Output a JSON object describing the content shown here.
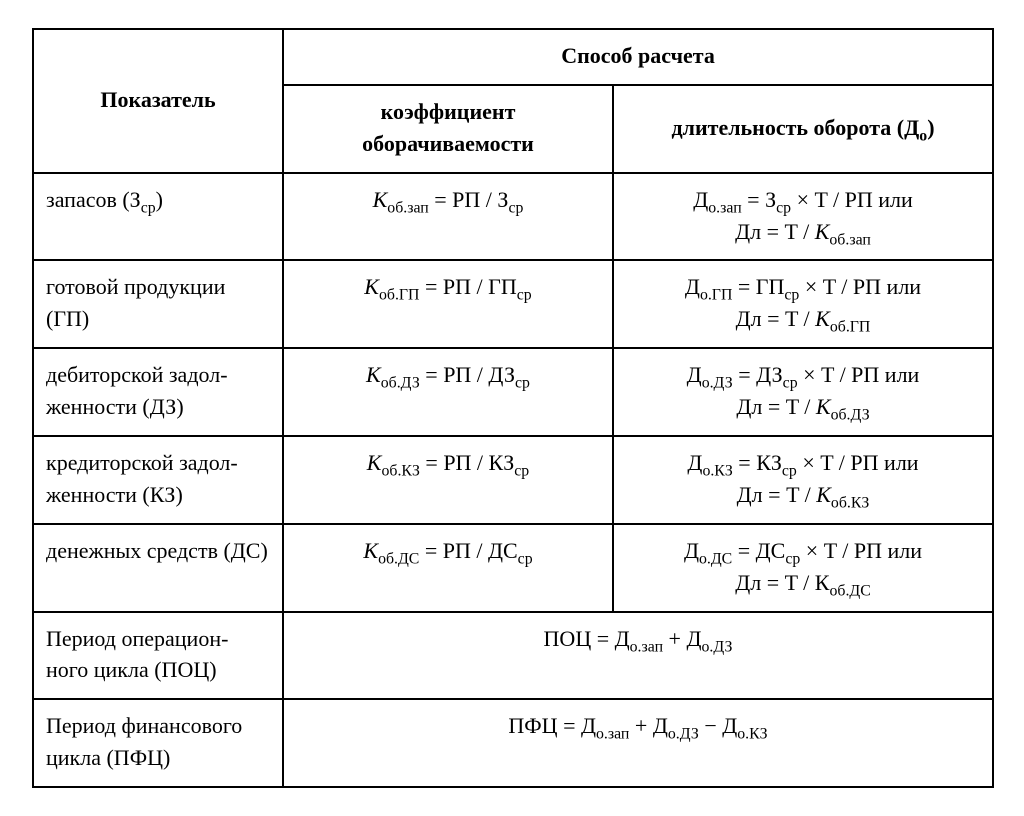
{
  "table": {
    "border_color": "#000000",
    "background_color": "#ffffff",
    "font_family": "Times New Roman",
    "body_fontsize_pt": 16,
    "header": {
      "indicator": "Показатель",
      "method": "Способ расчета",
      "sub_coeff": "коэффициент оборачиваемости",
      "sub_duration_html": "длительность оборота (Д<sub>о</sub>)"
    },
    "rows": [
      {
        "indicator_html": "запасов (З<sub>ср</sub>)",
        "coeff_html": "<span class=\"it\">K</span><sub>об.зап</sub> = РП / З<sub>ср</sub>",
        "duration_html": "Д<sub>о.зап</sub> = З<sub>ср</sub> × T / РП или<br>Дл = T / <span class=\"it\">K</span><sub>об.зап</sub>"
      },
      {
        "indicator_html": "готовой продукции (ГП)",
        "coeff_html": "<span class=\"it\">K</span><sub>об.ГП</sub> = РП / ГП<sub>ср</sub>",
        "duration_html": "Д<sub>о.ГП</sub> = ГП<sub>ср</sub> × T / РП или<br>Дл = T / <span class=\"it\">K</span><sub>об.ГП</sub>"
      },
      {
        "indicator_html": "дебиторской задол-<br>женности (ДЗ)",
        "coeff_html": "<span class=\"it\">K</span><sub>об.ДЗ</sub> = РП / ДЗ<sub>ср</sub>",
        "duration_html": "Д<sub>о.ДЗ</sub> = ДЗ<sub>ср</sub> × T / РП или<br>Дл = T / <span class=\"it\">K</span><sub>об.ДЗ</sub>"
      },
      {
        "indicator_html": "кредиторской задол-<br>женности (КЗ)",
        "coeff_html": "<span class=\"it\">K</span><sub>об.КЗ</sub> = РП / КЗ<sub>ср</sub>",
        "duration_html": "Д<sub>о.КЗ</sub> = КЗ<sub>ср</sub> × T / РП или<br>Дл = T / <span class=\"it\">K</span><sub>об.КЗ</sub>"
      },
      {
        "indicator_html": "денежных средств (ДС)",
        "coeff_html": "<span class=\"it\">K</span><sub>об.ДС</sub> = РП / ДС<sub>ср</sub>",
        "duration_html": "Д<sub>о.ДС</sub> = ДС<sub>ср</sub> × T / РП или<br>Дл = T / К<sub>об.ДС</sub>"
      },
      {
        "indicator_html": "Период операцион-<br>ного цикла (ПОЦ)",
        "merged_html": "ПОЦ = Д<sub>о.зап</sub> + Д<sub>о.ДЗ</sub>"
      },
      {
        "indicator_html": "Период финансового цикла (ПФЦ)",
        "merged_html": "ПФЦ = Д<sub>о.зап</sub> + Д<sub>о.ДЗ</sub> − Д<sub>о.КЗ</sub>"
      }
    ]
  }
}
